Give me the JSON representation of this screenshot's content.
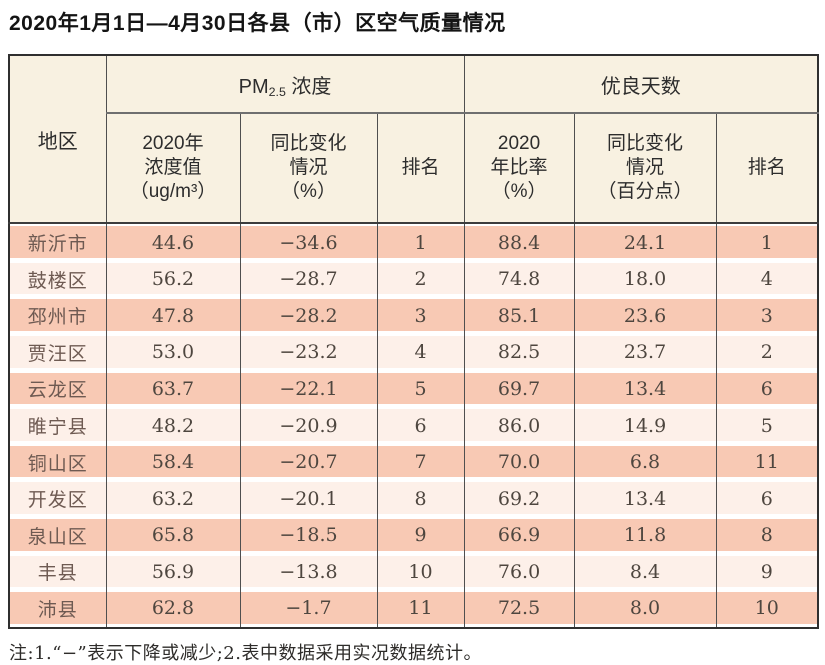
{
  "title": "2020年1月1日—4月30日各县（市）区空气质量情况",
  "header": {
    "region": "地区",
    "pm_group": {
      "prefix": "PM",
      "sub": "2.5",
      "suffix": " 浓度"
    },
    "good_days_group": "优良天数",
    "cols": {
      "pm_value": "2020年\n浓度值\n（ug/m³）",
      "pm_change": "同比变化\n情况\n（%）",
      "pm_rank": "排名",
      "gd_ratio": "2020\n年比率\n（%）",
      "gd_change": "同比变化\n情况\n（百分点）",
      "gd_rank": "排名"
    }
  },
  "rows": [
    {
      "region": "新沂市",
      "pm_value": "44.6",
      "pm_change": "−34.6",
      "pm_rank": "1",
      "gd_ratio": "88.4",
      "gd_change": "24.1",
      "gd_rank": "1"
    },
    {
      "region": "鼓楼区",
      "pm_value": "56.2",
      "pm_change": "−28.7",
      "pm_rank": "2",
      "gd_ratio": "74.8",
      "gd_change": "18.0",
      "gd_rank": "4"
    },
    {
      "region": "邳州市",
      "pm_value": "47.8",
      "pm_change": "−28.2",
      "pm_rank": "3",
      "gd_ratio": "85.1",
      "gd_change": "23.6",
      "gd_rank": "3"
    },
    {
      "region": "贾汪区",
      "pm_value": "53.0",
      "pm_change": "−23.2",
      "pm_rank": "4",
      "gd_ratio": "82.5",
      "gd_change": "23.7",
      "gd_rank": "2"
    },
    {
      "region": "云龙区",
      "pm_value": "63.7",
      "pm_change": "−22.1",
      "pm_rank": "5",
      "gd_ratio": "69.7",
      "gd_change": "13.4",
      "gd_rank": "6"
    },
    {
      "region": "睢宁县",
      "pm_value": "48.2",
      "pm_change": "−20.9",
      "pm_rank": "6",
      "gd_ratio": "86.0",
      "gd_change": "14.9",
      "gd_rank": "5"
    },
    {
      "region": "铜山区",
      "pm_value": "58.4",
      "pm_change": "−20.7",
      "pm_rank": "7",
      "gd_ratio": "70.0",
      "gd_change": "6.8",
      "gd_rank": "11"
    },
    {
      "region": "开发区",
      "pm_value": "63.2",
      "pm_change": "−20.1",
      "pm_rank": "8",
      "gd_ratio": "69.2",
      "gd_change": "13.4",
      "gd_rank": "6"
    },
    {
      "region": "泉山区",
      "pm_value": "65.8",
      "pm_change": "−18.5",
      "pm_rank": "9",
      "gd_ratio": "66.9",
      "gd_change": "11.8",
      "gd_rank": "8"
    },
    {
      "region": "丰县",
      "pm_value": "56.9",
      "pm_change": "−13.8",
      "pm_rank": "10",
      "gd_ratio": "76.0",
      "gd_change": "8.4",
      "gd_rank": "9"
    },
    {
      "region": "沛县",
      "pm_value": "62.8",
      "pm_change": "−1.7",
      "pm_rank": "11",
      "gd_ratio": "72.5",
      "gd_change": "8.0",
      "gd_rank": "10"
    }
  ],
  "footnote": "注:1.“−”表示下降或减少;2.表中数据采用实况数据统计。",
  "colors": {
    "stripe_dark": "#f8c9b4",
    "stripe_light": "#fdf0e9",
    "header_bg": "#f8f1e1",
    "border_outer": "#2f2f2f",
    "border_inner": "#4f4f4f",
    "text_region": "#6e5a52",
    "text_number": "#4e463f"
  }
}
